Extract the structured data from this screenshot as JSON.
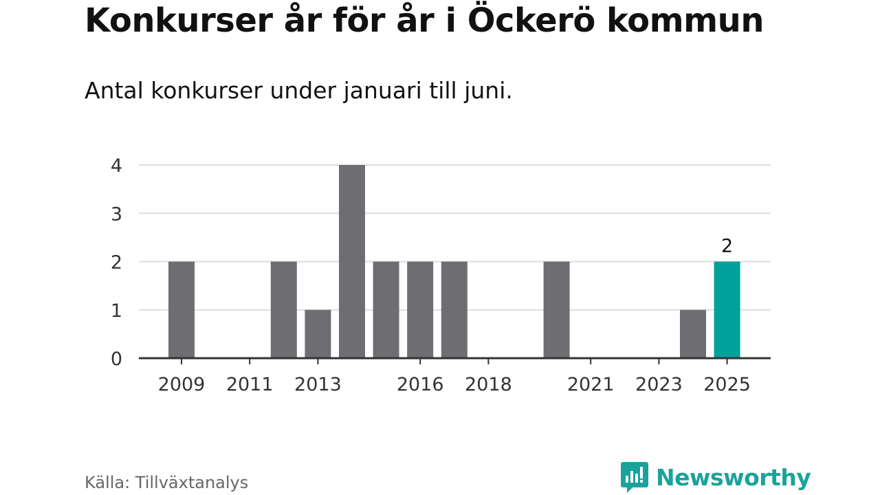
{
  "chart_data": {
    "type": "bar",
    "title": "Konkurser år för år i Öckerö kommun",
    "subtitle": "Antal konkurser under januari till juni.",
    "categories": [
      "2009",
      "2010",
      "2011",
      "2012",
      "2013",
      "2014",
      "2015",
      "2016",
      "2017",
      "2018",
      "2019",
      "2020",
      "2021",
      "2022",
      "2023",
      "2024",
      "2025"
    ],
    "x_tick_labels": [
      "2009",
      "2011",
      "2013",
      "2016",
      "2018",
      "2021",
      "2023",
      "2025"
    ],
    "values": [
      2,
      0,
      0,
      2,
      1,
      4,
      2,
      2,
      2,
      0,
      0,
      2,
      0,
      0,
      0,
      1,
      2
    ],
    "highlight": {
      "category": "2025",
      "label": "2",
      "color": "#00a19a"
    },
    "bar_color": "#6e6d72",
    "ylim": [
      0,
      4
    ],
    "yticks": [
      0,
      1,
      2,
      3,
      4
    ],
    "grid": true,
    "legend": "none"
  },
  "footer": {
    "source": "Källa: Tillväxtanalys",
    "brand": "Newsworthy",
    "brand_color": "#1aa39a",
    "brand_icon": "bar-chart-speech-bubble-icon"
  }
}
